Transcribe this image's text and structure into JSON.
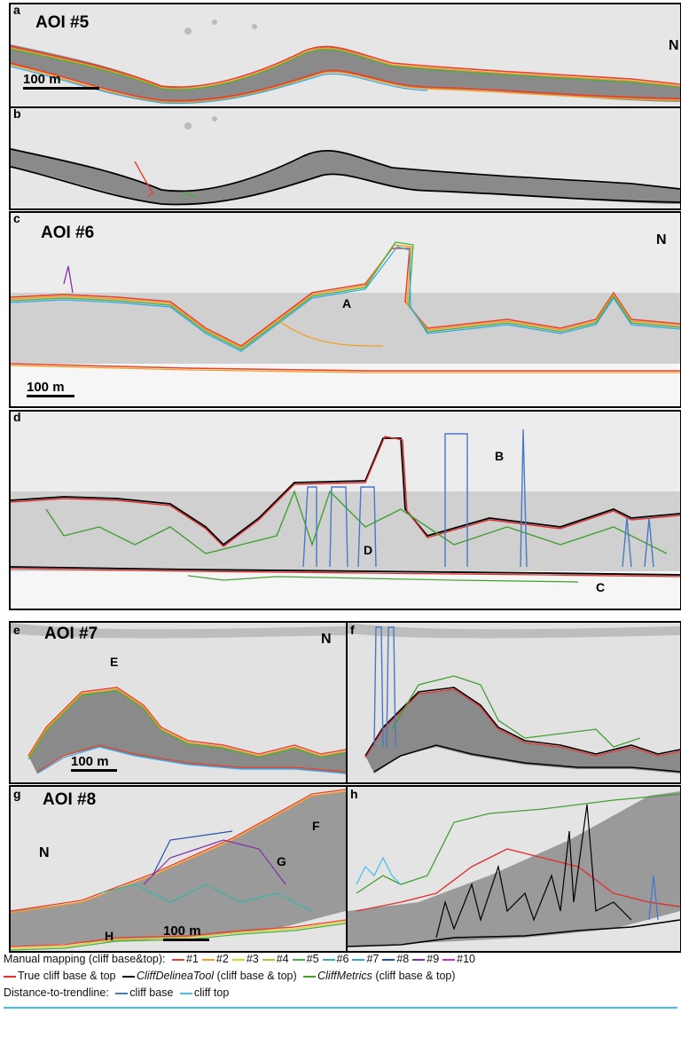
{
  "panels": {
    "a": {
      "letter": "a",
      "aoi": "AOI #5",
      "scale": "100 m",
      "north": "N"
    },
    "b": {
      "letter": "b"
    },
    "c": {
      "letter": "c",
      "aoi": "AOI #6",
      "scale": "100 m",
      "north": "N",
      "callout": "A"
    },
    "d": {
      "letter": "d",
      "callouts": [
        "B",
        "D",
        "C"
      ]
    },
    "e": {
      "letter": "e",
      "aoi": "AOI #7",
      "scale": "100 m",
      "north": "N",
      "callout": "E"
    },
    "f": {
      "letter": "f"
    },
    "g": {
      "letter": "g",
      "aoi": "AOI #8",
      "scale": "100 m",
      "north": "N",
      "callouts": [
        "F",
        "G",
        "H"
      ]
    },
    "h": {
      "letter": "h"
    }
  },
  "legend": {
    "manual_label": "Manual mapping (cliff base&top):",
    "manual_items": [
      {
        "label": "#1",
        "color": "#e8402a"
      },
      {
        "label": "#2",
        "color": "#f0a020"
      },
      {
        "label": "#3",
        "color": "#e0d020"
      },
      {
        "label": "#4",
        "color": "#a8cc30"
      },
      {
        "label": "#5",
        "color": "#48b040"
      },
      {
        "label": "#6",
        "color": "#30b8a8"
      },
      {
        "label": "#7",
        "color": "#30a8e8"
      },
      {
        "label": "#8",
        "color": "#2050b0"
      },
      {
        "label": "#9",
        "color": "#8030a8"
      },
      {
        "label": "#10",
        "color": "#d030c0"
      }
    ],
    "true_label": "True cliff base & top",
    "true_color": "#e03030",
    "tool_name": "CliffDelineaTool",
    "tool_suffix": "(cliff base & top)",
    "tool_color": "#000000",
    "metrics_name": "CliffMetrics",
    "metrics_suffix": "(cliff base & top)",
    "metrics_color": "#40a030",
    "dtt_label": "Distance-to-trendline:",
    "dtt_base_label": "cliff base",
    "dtt_base_color": "#4878c8",
    "dtt_top_label": "cliff top",
    "dtt_top_color": "#40c0f0"
  }
}
